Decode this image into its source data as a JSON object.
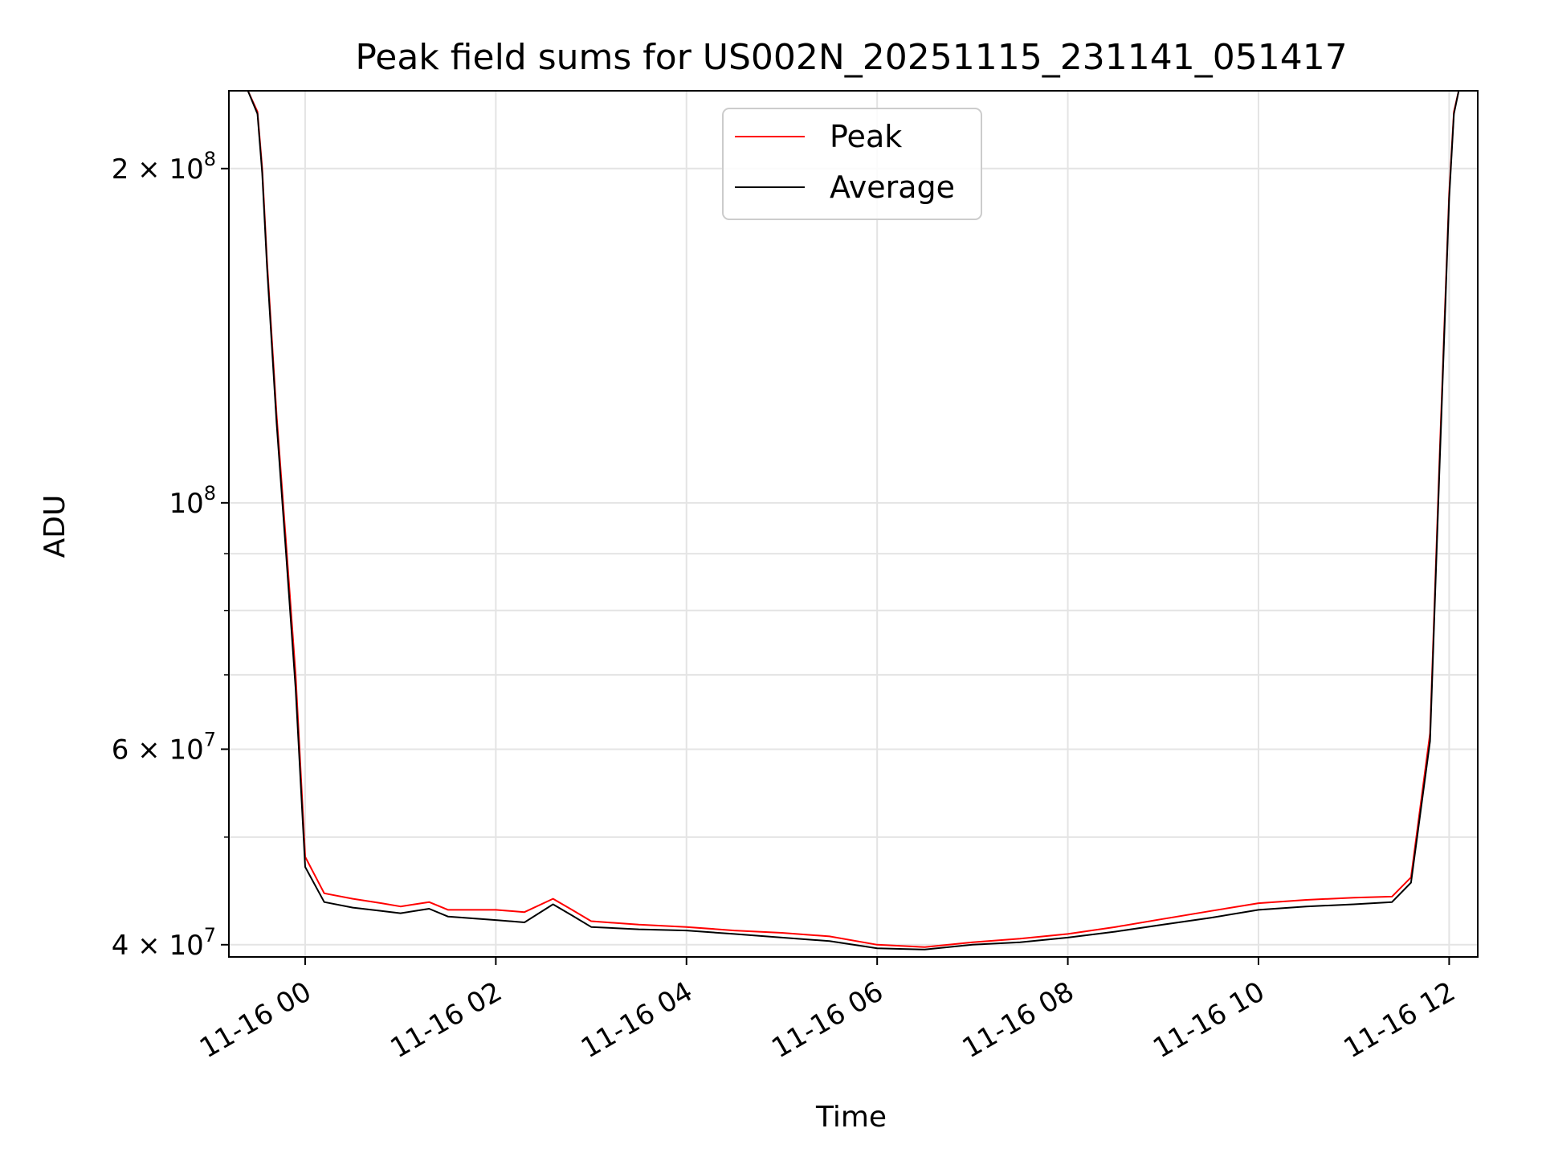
{
  "chart_data": {
    "type": "line",
    "title": "Peak field sums for US002N_20251115_231141_051417",
    "xlabel": "Time",
    "ylabel": "ADU",
    "yscale": "log",
    "xlim_hours": [
      -0.8,
      12.3
    ],
    "ylim": [
      39000000,
      235000000
    ],
    "x_ticks": [
      {
        "hour": 0,
        "label": "11-16 00"
      },
      {
        "hour": 2,
        "label": "11-16 02"
      },
      {
        "hour": 4,
        "label": "11-16 04"
      },
      {
        "hour": 6,
        "label": "11-16 06"
      },
      {
        "hour": 8,
        "label": "11-16 08"
      },
      {
        "hour": 10,
        "label": "11-16 10"
      },
      {
        "hour": 12,
        "label": "11-16 12"
      }
    ],
    "y_ticks": [
      {
        "value": 40000000,
        "label": "4 × 10⁷",
        "mantissa": "4 × 10",
        "exponent": "7"
      },
      {
        "value": 60000000,
        "label": "6 × 10⁷",
        "mantissa": "6 × 10",
        "exponent": "7"
      },
      {
        "value": 100000000,
        "label": "10⁸",
        "mantissa": "10",
        "exponent": "8"
      },
      {
        "value": 200000000,
        "label": "2 × 10⁸",
        "mantissa": "2 × 10",
        "exponent": "8"
      }
    ],
    "y_minor_ticks": [
      50000000,
      70000000,
      80000000,
      90000000
    ],
    "legend": {
      "position": "top-center",
      "entries": [
        {
          "name": "Peak",
          "color": "#ff0000"
        },
        {
          "name": "Average",
          "color": "#000000"
        }
      ]
    },
    "series": [
      {
        "name": "Peak",
        "color": "#ff0000",
        "x_hours": [
          -0.6,
          -0.5,
          -0.45,
          -0.4,
          -0.3,
          -0.2,
          -0.1,
          0.0,
          0.2,
          0.5,
          0.8,
          1.0,
          1.3,
          1.5,
          2.0,
          2.3,
          2.6,
          2.8,
          3.0,
          3.5,
          4.0,
          4.5,
          5.0,
          5.5,
          6.0,
          6.5,
          7.0,
          7.5,
          8.0,
          8.5,
          9.0,
          9.5,
          10.0,
          10.5,
          11.0,
          11.4,
          11.6,
          11.8,
          11.9,
          12.0,
          12.05,
          12.1
        ],
        "values": [
          235000000,
          225000000,
          200000000,
          165000000,
          120000000,
          92000000,
          70000000,
          48000000,
          44500000,
          44000000,
          43600000,
          43300000,
          43700000,
          43000000,
          43000000,
          42800000,
          44000000,
          43000000,
          42000000,
          41700000,
          41500000,
          41200000,
          41000000,
          40700000,
          40000000,
          39800000,
          40200000,
          40500000,
          40900000,
          41500000,
          42200000,
          42900000,
          43600000,
          43900000,
          44100000,
          44200000,
          46000000,
          62000000,
          110000000,
          190000000,
          225000000,
          235000000
        ]
      },
      {
        "name": "Average",
        "color": "#000000",
        "x_hours": [
          -0.6,
          -0.5,
          -0.45,
          -0.4,
          -0.3,
          -0.2,
          -0.1,
          0.0,
          0.2,
          0.5,
          0.8,
          1.0,
          1.3,
          1.5,
          2.0,
          2.3,
          2.6,
          2.8,
          3.0,
          3.5,
          4.0,
          4.5,
          5.0,
          5.5,
          6.0,
          6.5,
          7.0,
          7.5,
          8.0,
          8.5,
          9.0,
          9.5,
          10.0,
          10.5,
          11.0,
          11.4,
          11.6,
          11.8,
          11.9,
          12.0,
          12.05,
          12.1
        ],
        "values": [
          235000000,
          224000000,
          198000000,
          163000000,
          118000000,
          90000000,
          68000000,
          47000000,
          43700000,
          43200000,
          42900000,
          42700000,
          43100000,
          42400000,
          42100000,
          41900000,
          43500000,
          42500000,
          41500000,
          41300000,
          41200000,
          40900000,
          40600000,
          40300000,
          39700000,
          39600000,
          40000000,
          40200000,
          40600000,
          41100000,
          41700000,
          42300000,
          43000000,
          43300000,
          43500000,
          43700000,
          45500000,
          61000000,
          108000000,
          188000000,
          224000000,
          235000000
        ]
      }
    ]
  }
}
